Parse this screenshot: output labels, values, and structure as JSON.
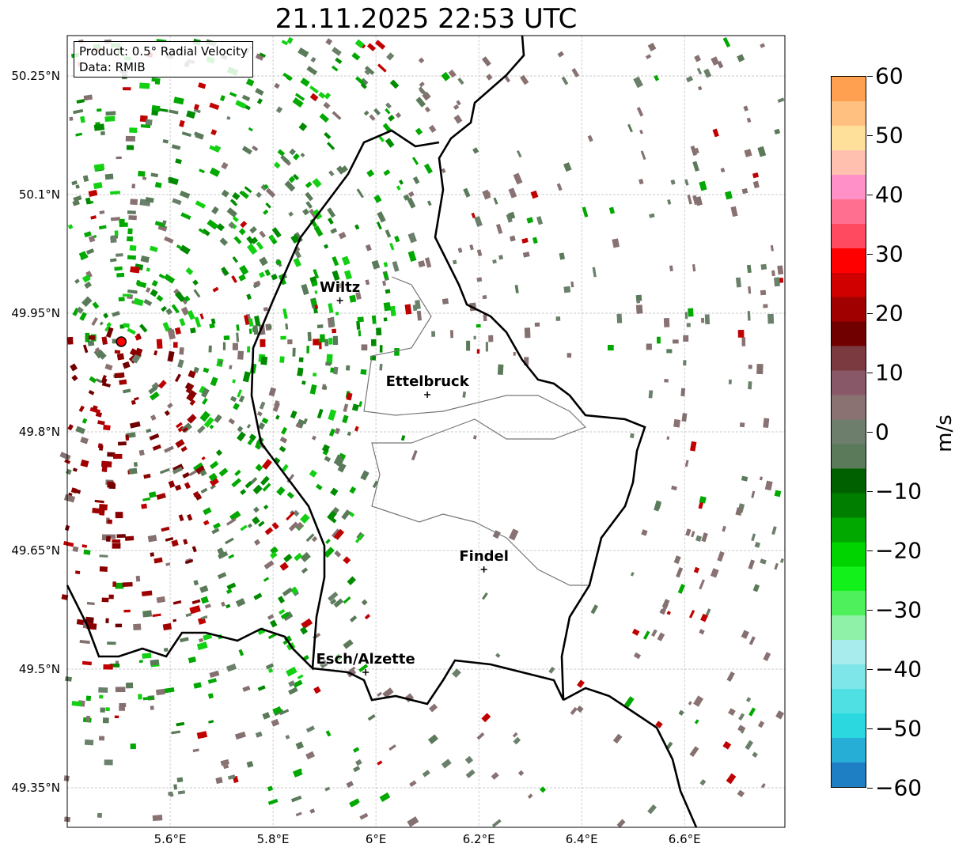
{
  "title": "21.11.2025 22:53 UTC",
  "info": {
    "product": "Product: 0.5° Radial Velocity",
    "data_source": "Data: RMIB"
  },
  "axes": {
    "lon_labels": [
      {
        "v": 5.6,
        "t": "5.6°E"
      },
      {
        "v": 5.8,
        "t": "5.8°E"
      },
      {
        "v": 6.0,
        "t": "6°E"
      },
      {
        "v": 6.2,
        "t": "6.2°E"
      },
      {
        "v": 6.4,
        "t": "6.4°E"
      },
      {
        "v": 6.6,
        "t": "6.6°E"
      }
    ],
    "lat_labels": [
      {
        "v": 50.25,
        "t": "50.25°N"
      },
      {
        "v": 50.1,
        "t": "50.1°N"
      },
      {
        "v": 49.95,
        "t": "49.95°N"
      },
      {
        "v": 49.8,
        "t": "49.8°N"
      },
      {
        "v": 49.65,
        "t": "49.65°N"
      },
      {
        "v": 49.5,
        "t": "49.5°N"
      },
      {
        "v": 49.35,
        "t": "49.35°N"
      }
    ],
    "lon_range": [
      5.4,
      6.795
    ],
    "lat_range": [
      49.3,
      50.301
    ]
  },
  "cities": [
    {
      "name": "Wiltz",
      "lon": 5.93,
      "lat": 49.966
    },
    {
      "name": "Ettelbruck",
      "lon": 6.1,
      "lat": 49.847
    },
    {
      "name": "Findel",
      "lon": 6.21,
      "lat": 49.626
    },
    {
      "name": "Esch/Alzette",
      "lon": 5.98,
      "lat": 49.496
    }
  ],
  "radar_site": {
    "lon": 5.505,
    "lat": 49.914
  },
  "colorbar": {
    "unit": "m/s",
    "min": -60,
    "max": 60,
    "ticks": [
      {
        "v": 60,
        "t": "60"
      },
      {
        "v": 50,
        "t": "50"
      },
      {
        "v": 40,
        "t": "40"
      },
      {
        "v": 30,
        "t": "30"
      },
      {
        "v": 20,
        "t": "20"
      },
      {
        "v": 10,
        "t": "10"
      },
      {
        "v": 0,
        "t": "0"
      },
      {
        "v": -10,
        "t": "−10"
      },
      {
        "v": -20,
        "t": "−20"
      },
      {
        "v": -30,
        "t": "−30"
      },
      {
        "v": -40,
        "t": "−40"
      },
      {
        "v": -50,
        "t": "−50"
      },
      {
        "v": -60,
        "t": "−60"
      }
    ],
    "colors_low_to_high": [
      "#1f7fc4",
      "#27aed6",
      "#2cd8e0",
      "#4fe0e4",
      "#7ee6e8",
      "#a8ecee",
      "#8ff0a8",
      "#4ef05c",
      "#12f21a",
      "#00d400",
      "#00a800",
      "#007e00",
      "#006000",
      "#5a7a5a",
      "#6e7e6c",
      "#8a7272",
      "#885868",
      "#7a3a40",
      "#700000",
      "#a00000",
      "#d00000",
      "#ff0000",
      "#ff4a60",
      "#ff7090",
      "#ff90c8",
      "#ffc0b0",
      "#ffe09a",
      "#ffc080",
      "#ffa050"
    ]
  }
}
